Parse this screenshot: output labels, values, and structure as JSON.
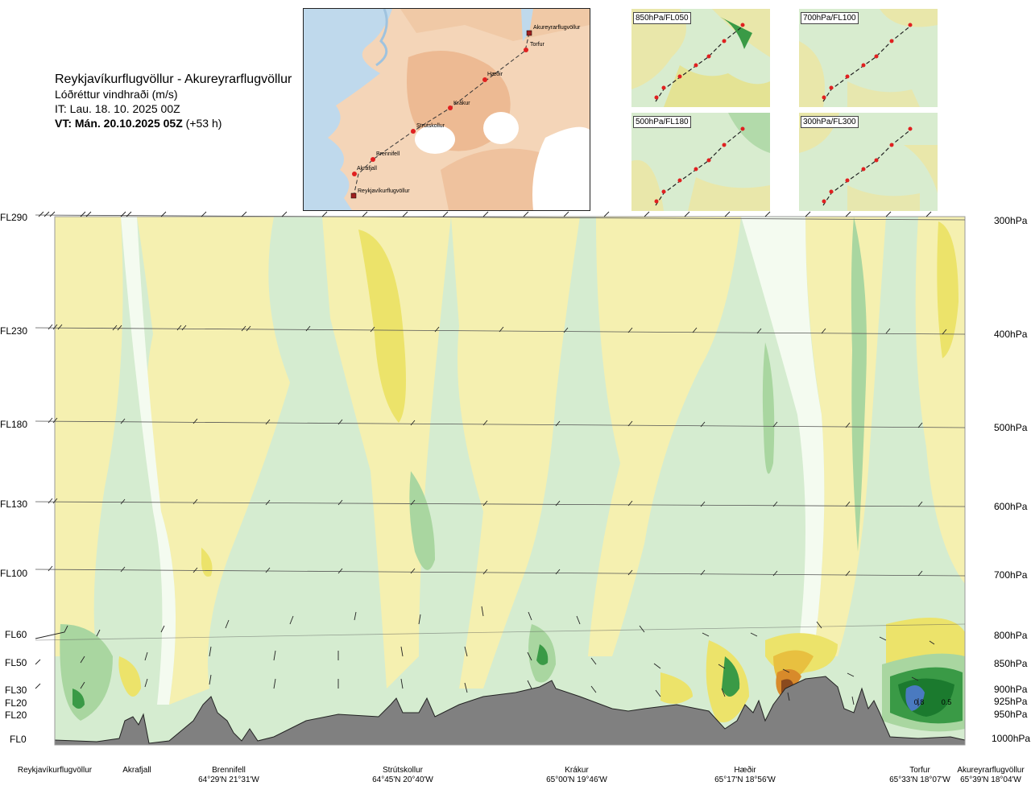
{
  "header": {
    "route": "Reykjavíkurflugvöllur - Akureyrarflugvöllur",
    "subtitle": "Lóðréttur vindhraði (m/s)",
    "it": "IT: Lau. 18. 10. 2025 00Z",
    "vt_bold": "VT: Mán. 20.10.2025 05Z",
    "vt_suffix": " (+53 h)"
  },
  "route_map": {
    "points": [
      "Reykjavíkurflugvöllur",
      "Akrafjall",
      "Brennifell",
      "Strútskollur",
      "Krákur",
      "Hæðir",
      "Torfur",
      "Akureyrarflugvöllur"
    ]
  },
  "mini_maps": [
    "850hPa/FL050",
    "700hPa/FL100",
    "500hPa/FL180",
    "300hPa/FL300"
  ],
  "levels": [
    {
      "fl": "FL290",
      "hpa": "300hPa"
    },
    {
      "fl": "FL230",
      "hpa": "400hPa"
    },
    {
      "fl": "FL180",
      "hpa": "500hPa"
    },
    {
      "fl": "FL130",
      "hpa": "600hPa"
    },
    {
      "fl": "FL100",
      "hpa": "700hPa"
    },
    {
      "fl": "FL60",
      "hpa": "800hPa"
    },
    {
      "fl": "FL50",
      "hpa": "850hPa"
    },
    {
      "fl": "FL30",
      "hpa": "900hPa"
    },
    {
      "fl": "FL20",
      "hpa": "925hPa"
    },
    {
      "fl": "FL20",
      "hpa": "950hPa"
    },
    {
      "fl": "FL0",
      "hpa": "1000hPa"
    }
  ],
  "contour_labels": [
    "0.8",
    "0.5"
  ],
  "locations": [
    {
      "name": "Reykjavíkurflugvöllur",
      "coord": ""
    },
    {
      "name": "Akrafjall",
      "coord": ""
    },
    {
      "name": "Brennifell",
      "coord": "64°29'N 21°31'W"
    },
    {
      "name": "Strútskollur",
      "coord": "64°45'N 20°40'W"
    },
    {
      "name": "Krákur",
      "coord": "65°00'N 19°46'W"
    },
    {
      "name": "Hæðir",
      "coord": "65°17'N 18°56'W"
    },
    {
      "name": "Torfur",
      "coord": "65°33'N 18°07'W"
    },
    {
      "name": "Akureyrarflugvöllur",
      "coord": "65°39'N 18°04'W"
    }
  ],
  "colors": {
    "sink_light": "#f5f0b0",
    "sink_mid": "#ece36a",
    "sink_strong": "#e8c040",
    "sink_orange": "#d88a2a",
    "sink_brown": "#8a4a1e",
    "rise_light": "#d5ecd0",
    "rise_mid": "#a9d6a0",
    "rise_strong": "#3a9a46",
    "rise_dark": "#1b7a2e",
    "rise_blue": "#4a7ac0",
    "neutral": "#f4fbf0",
    "terrain": "#808080"
  }
}
